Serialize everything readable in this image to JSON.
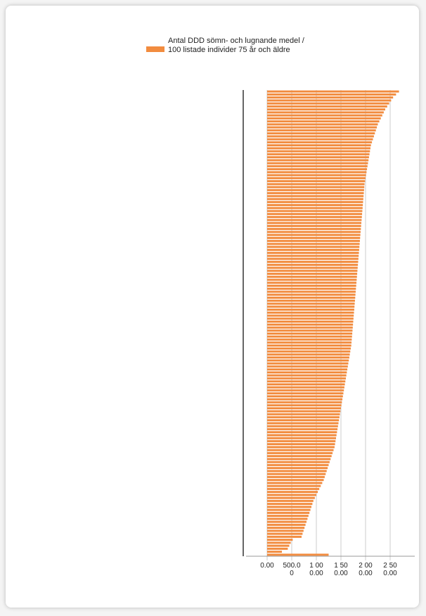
{
  "chart_data": {
    "type": "bar",
    "orientation": "horizontal",
    "legend_label": "Antal DDD sömn- och lugnande medel / 100 listade individer 75 år och äldre",
    "color": "#f28c3f",
    "grid": true,
    "xlim": [
      0,
      3000
    ],
    "xticks": [
      {
        "value": 0,
        "label": "0.00"
      },
      {
        "value": 500,
        "label": "500.00"
      },
      {
        "value": 1000,
        "label": "1 000.00"
      },
      {
        "value": 1500,
        "label": "1 500.00"
      },
      {
        "value": 2000,
        "label": "2 000.00"
      },
      {
        "value": 2500,
        "label": "2 500.00"
      }
    ],
    "categories": [
      null,
      null,
      null,
      null,
      null,
      null,
      null,
      null,
      null,
      null,
      null,
      null,
      null,
      null,
      null,
      null,
      null,
      null,
      null,
      null,
      null,
      null,
      null,
      null,
      null,
      null,
      null,
      null,
      null,
      null,
      null,
      null,
      null,
      null,
      null,
      null,
      null,
      null,
      null,
      null,
      null,
      null,
      null,
      null,
      null,
      null,
      null,
      null,
      null,
      null,
      null,
      null,
      null,
      null,
      null,
      null,
      null,
      null,
      null,
      null,
      null,
      null,
      null,
      null,
      null,
      null,
      null,
      null,
      null,
      null,
      null,
      null,
      null,
      null,
      null,
      null,
      null,
      null,
      null,
      null,
      null,
      null,
      null,
      null,
      null,
      null,
      null,
      null,
      null,
      null,
      null,
      null,
      null,
      null,
      null,
      null,
      null,
      null,
      null,
      null,
      null,
      null,
      null,
      null,
      null,
      null,
      null,
      null,
      null,
      null,
      null,
      null,
      null,
      null,
      null,
      null,
      null,
      null,
      null,
      null,
      null,
      null,
      null,
      null,
      null,
      null,
      null,
      null,
      null,
      null,
      null,
      null,
      null,
      null,
      null,
      null,
      null,
      null,
      null,
      null,
      null,
      null,
      null,
      null,
      null,
      null,
      null,
      null,
      null,
      null,
      null,
      null,
      null,
      null,
      null,
      null
    ],
    "values": [
      2680,
      2620,
      2560,
      2520,
      2480,
      2440,
      2400,
      2370,
      2340,
      2310,
      2280,
      2250,
      2230,
      2210,
      2190,
      2170,
      2150,
      2130,
      2110,
      2100,
      2090,
      2080,
      2070,
      2060,
      2050,
      2040,
      2030,
      2020,
      2010,
      2000,
      1990,
      1980,
      1975,
      1970,
      1965,
      1960,
      1955,
      1950,
      1945,
      1940,
      1935,
      1930,
      1925,
      1920,
      1915,
      1910,
      1905,
      1900,
      1895,
      1890,
      1885,
      1880,
      1875,
      1870,
      1865,
      1860,
      1855,
      1850,
      1845,
      1840,
      1835,
      1830,
      1825,
      1820,
      1815,
      1810,
      1805,
      1800,
      1795,
      1790,
      1785,
      1780,
      1775,
      1770,
      1765,
      1760,
      1755,
      1750,
      1745,
      1740,
      1735,
      1730,
      1725,
      1720,
      1715,
      1710,
      1700,
      1690,
      1680,
      1670,
      1660,
      1650,
      1640,
      1630,
      1620,
      1610,
      1600,
      1590,
      1580,
      1570,
      1560,
      1550,
      1540,
      1530,
      1520,
      1510,
      1500,
      1490,
      1480,
      1470,
      1460,
      1450,
      1440,
      1430,
      1420,
      1410,
      1400,
      1390,
      1380,
      1370,
      1350,
      1330,
      1310,
      1290,
      1270,
      1250,
      1230,
      1210,
      1190,
      1170,
      1150,
      1120,
      1090,
      1060,
      1030,
      1000,
      970,
      940,
      920,
      900,
      880,
      860,
      840,
      820,
      800,
      780,
      760,
      740,
      720,
      700,
      520,
      480,
      450,
      420,
      300,
      1250
    ]
  }
}
